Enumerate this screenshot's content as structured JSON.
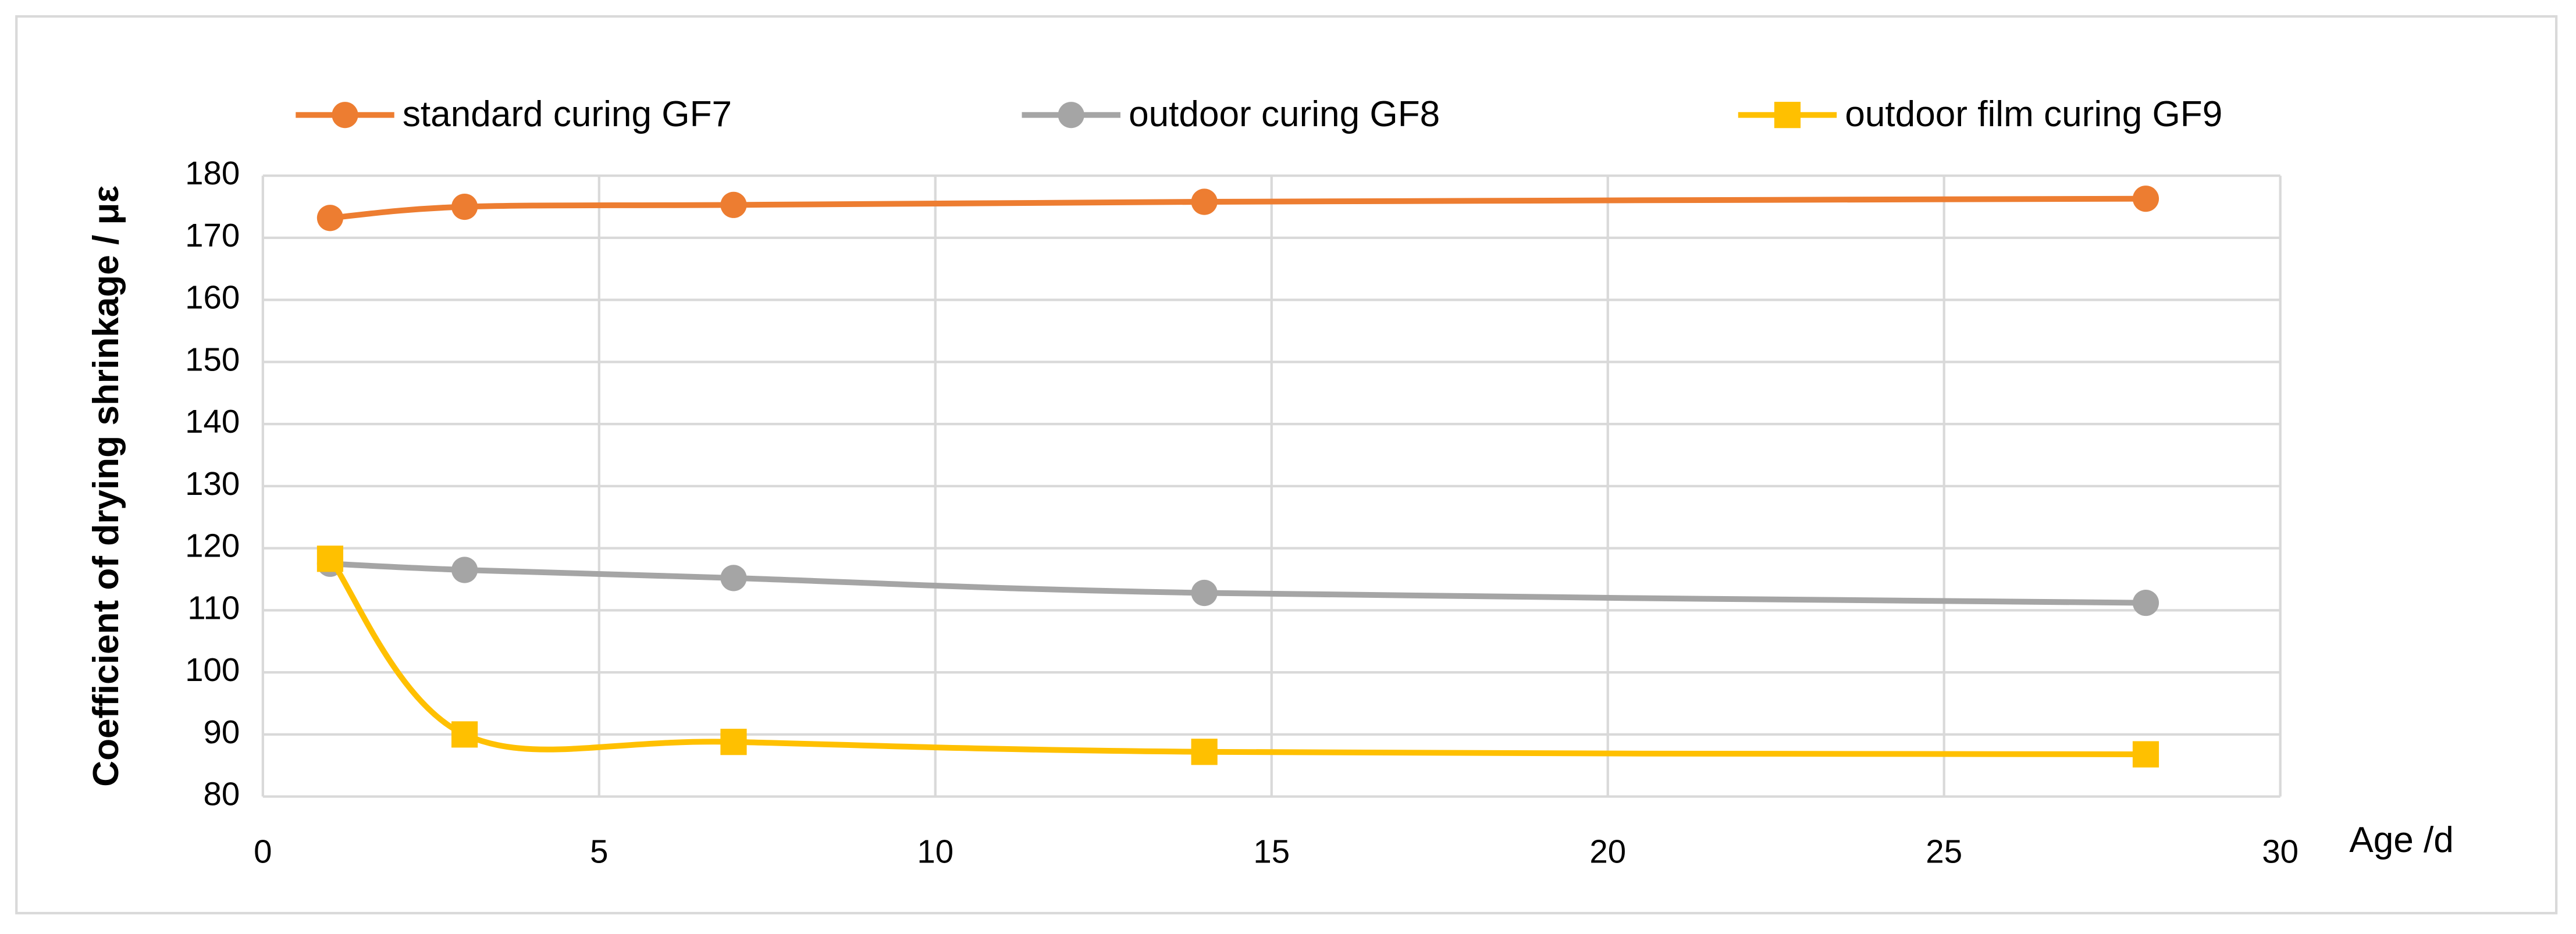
{
  "chart_data": {
    "type": "line",
    "x_label": "Age /d",
    "y_label": "Coefficient of drying shrinkage / με",
    "x": [
      1,
      3,
      7,
      14,
      28
    ],
    "series": [
      {
        "name": "standard curing GF7",
        "color": "#ED7D31",
        "marker": "circle",
        "values": [
          173.2,
          175,
          175.3,
          175.8,
          176.3
        ]
      },
      {
        "name": "outdoor curing GF8",
        "color": "#A5A5A5",
        "marker": "circle",
        "values": [
          117.5,
          116.5,
          115.2,
          112.8,
          111.2
        ]
      },
      {
        "name": "outdoor film curing GF9",
        "color": "#FFC000",
        "marker": "square",
        "values": [
          118.3,
          90,
          88.8,
          87.2,
          86.8
        ]
      }
    ],
    "xlim": [
      0,
      30
    ],
    "xticks": [
      0,
      5,
      10,
      15,
      20,
      25,
      30
    ],
    "ylim": [
      80,
      180
    ],
    "yticks": [
      80,
      90,
      100,
      110,
      120,
      130,
      140,
      150,
      160,
      170,
      180
    ],
    "grid": true,
    "smooth": true,
    "legend": "top"
  }
}
